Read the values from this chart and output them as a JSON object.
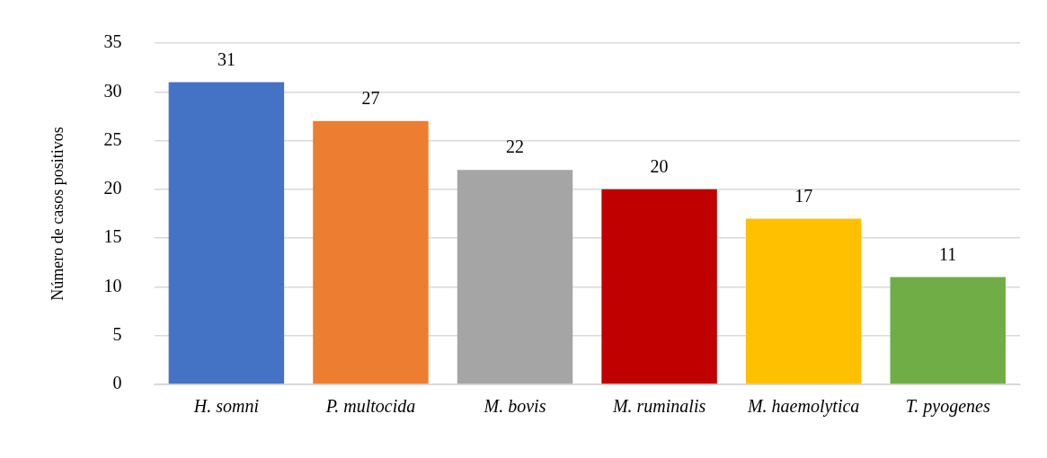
{
  "chart_data": {
    "type": "bar",
    "ylabel": "Número de casos positivos",
    "categories": [
      "H. somni",
      "P. multocida",
      "M. bovis",
      "M. ruminalis",
      "M. haemolytica",
      "T. pyogenes"
    ],
    "values": [
      31,
      27,
      22,
      20,
      17,
      11
    ],
    "colors": [
      "#4472c4",
      "#ed7d31",
      "#a5a5a5",
      "#c00000",
      "#ffc000",
      "#70ad47"
    ],
    "ylim": [
      0,
      35
    ],
    "yticks": [
      0,
      5,
      10,
      15,
      20,
      25,
      30,
      35
    ],
    "grid": "y",
    "legend": false,
    "data_labels": true
  }
}
